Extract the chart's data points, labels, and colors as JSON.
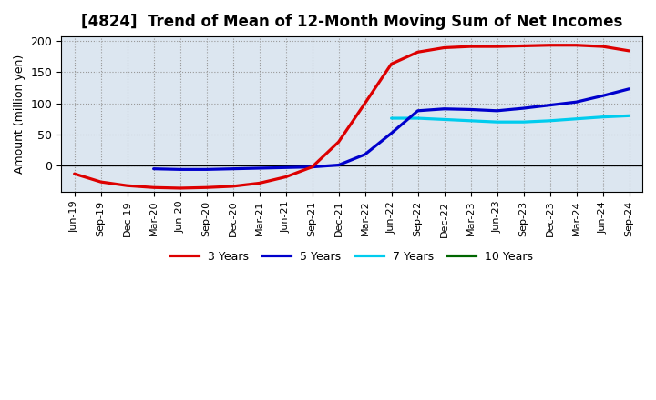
{
  "title": "[4824]  Trend of Mean of 12-Month Moving Sum of Net Incomes",
  "ylabel": "Amount (million yen)",
  "ylim": [
    -42,
    207
  ],
  "plot_bg_color": "#dce6f0",
  "fig_bg_color": "#ffffff",
  "grid_color": "#999999",
  "x_labels": [
    "Jun-19",
    "Sep-19",
    "Dec-19",
    "Mar-20",
    "Jun-20",
    "Sep-20",
    "Dec-20",
    "Mar-21",
    "Jun-21",
    "Sep-21",
    "Dec-21",
    "Mar-22",
    "Jun-22",
    "Sep-22",
    "Dec-22",
    "Mar-23",
    "Jun-23",
    "Sep-23",
    "Dec-23",
    "Mar-24",
    "Jun-24",
    "Sep-24"
  ],
  "series_3yr": {
    "color": "#dd0000",
    "linewidth": 2.3,
    "x": [
      0,
      1,
      2,
      3,
      4,
      5,
      6,
      7,
      8,
      9,
      10,
      11,
      12,
      13,
      14,
      15,
      16,
      17,
      18,
      19,
      20,
      21
    ],
    "y": [
      -13,
      -26,
      -32,
      -35,
      -36,
      -35,
      -33,
      -28,
      -18,
      -2,
      38,
      100,
      163,
      182,
      189,
      191,
      191,
      192,
      193,
      193,
      191,
      184
    ]
  },
  "series_5yr": {
    "color": "#0000cc",
    "linewidth": 2.3,
    "x": [
      3,
      4,
      5,
      6,
      7,
      8,
      9,
      10,
      11,
      12,
      13,
      14,
      15,
      16,
      17,
      18,
      19,
      20,
      21
    ],
    "y": [
      -5,
      -6,
      -6,
      -5,
      -4,
      -3,
      -2,
      1,
      18,
      52,
      88,
      91,
      90,
      88,
      92,
      97,
      102,
      112,
      123
    ]
  },
  "series_7yr": {
    "color": "#00ccee",
    "linewidth": 2.3,
    "x": [
      12,
      13,
      14,
      15,
      16,
      17,
      18,
      19,
      20,
      21
    ],
    "y": [
      76,
      76,
      74,
      72,
      70,
      70,
      72,
      75,
      78,
      80
    ]
  },
  "series_10yr": {
    "color": "#006600",
    "linewidth": 2.3,
    "x": [],
    "y": []
  },
  "legend_labels": [
    "3 Years",
    "5 Years",
    "7 Years",
    "10 Years"
  ],
  "legend_colors": [
    "#dd0000",
    "#0000cc",
    "#00ccee",
    "#006600"
  ],
  "yticks": [
    0,
    50,
    100,
    150,
    200
  ],
  "title_fontsize": 12,
  "axis_fontsize": 9,
  "tick_fontsize": 9
}
